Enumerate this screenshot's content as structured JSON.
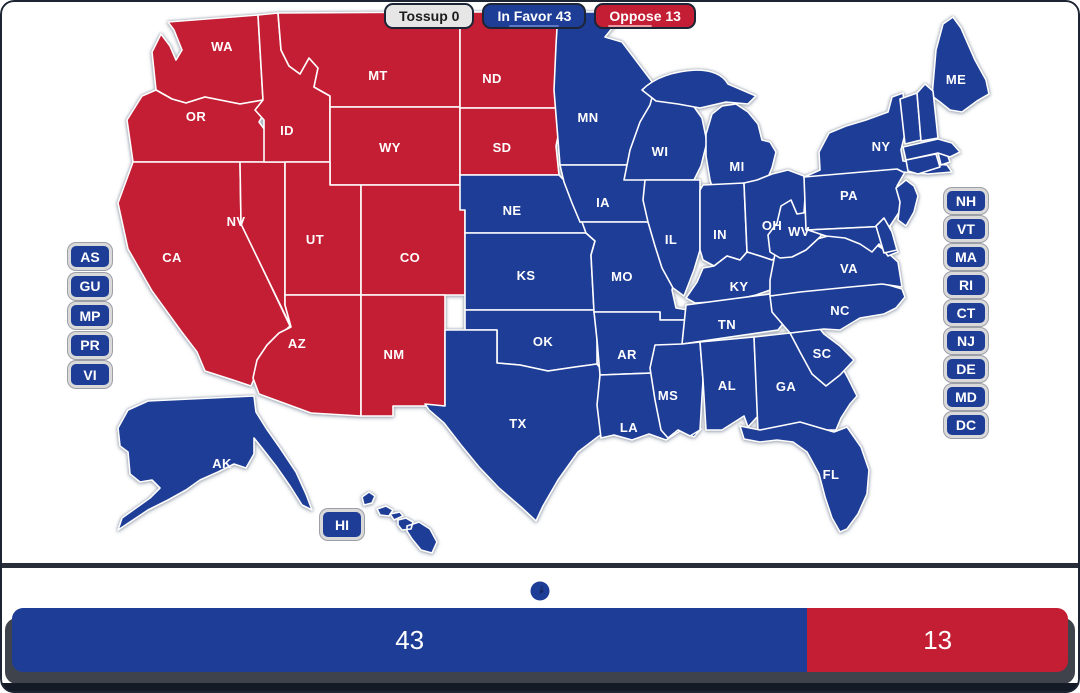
{
  "colors": {
    "in_favor": "#1e3d96",
    "oppose": "#c31e33",
    "tossup": "#e6e6e6",
    "state_border": "#ffffff",
    "label_text": "#ffffff",
    "divider": "#272e3a",
    "bar_shadow": "#3f444c"
  },
  "toolbar": {
    "tossup_text": "Tossup 0",
    "in_favor_text": "In Favor 43",
    "oppose_text": "Oppose 13"
  },
  "territory_boxes_left": [
    "AS",
    "GU",
    "MP",
    "PR",
    "VI"
  ],
  "state_boxes_right": [
    "NH",
    "VT",
    "MA",
    "RI",
    "CT",
    "NJ",
    "DE",
    "MD",
    "DC"
  ],
  "hawaii_box_label": "HI",
  "bar": {
    "in_favor_value": "43",
    "oppose_value": "13",
    "in_favor_seats": 43,
    "oppose_seats": 13,
    "total": 56
  },
  "marker_icon": "flag-threshold-marker",
  "map": {
    "states": [
      {
        "abbr": "WA",
        "status": "oppose",
        "label": true
      },
      {
        "abbr": "OR",
        "status": "oppose",
        "label": true
      },
      {
        "abbr": "CA",
        "status": "oppose",
        "label": true
      },
      {
        "abbr": "NV",
        "status": "oppose",
        "label": true
      },
      {
        "abbr": "ID",
        "status": "oppose",
        "label": true
      },
      {
        "abbr": "MT",
        "status": "oppose",
        "label": true
      },
      {
        "abbr": "WY",
        "status": "oppose",
        "label": true
      },
      {
        "abbr": "UT",
        "status": "oppose",
        "label": true
      },
      {
        "abbr": "CO",
        "status": "oppose",
        "label": true
      },
      {
        "abbr": "AZ",
        "status": "oppose",
        "label": true
      },
      {
        "abbr": "NM",
        "status": "oppose",
        "label": true
      },
      {
        "abbr": "ND",
        "status": "oppose",
        "label": true
      },
      {
        "abbr": "SD",
        "status": "oppose",
        "label": true
      },
      {
        "abbr": "NE",
        "status": "in_favor",
        "label": true
      },
      {
        "abbr": "KS",
        "status": "in_favor",
        "label": true
      },
      {
        "abbr": "OK",
        "status": "in_favor",
        "label": true
      },
      {
        "abbr": "TX",
        "status": "in_favor",
        "label": true
      },
      {
        "abbr": "MN",
        "status": "in_favor",
        "label": true
      },
      {
        "abbr": "IA",
        "status": "in_favor",
        "label": true
      },
      {
        "abbr": "MO",
        "status": "in_favor",
        "label": true
      },
      {
        "abbr": "AR",
        "status": "in_favor",
        "label": true
      },
      {
        "abbr": "LA",
        "status": "in_favor",
        "label": true
      },
      {
        "abbr": "WI",
        "status": "in_favor",
        "label": true
      },
      {
        "abbr": "MI",
        "status": "in_favor",
        "label": true
      },
      {
        "abbr": "IL",
        "status": "in_favor",
        "label": true
      },
      {
        "abbr": "IN",
        "status": "in_favor",
        "label": true
      },
      {
        "abbr": "OH",
        "status": "in_favor",
        "label": true
      },
      {
        "abbr": "KY",
        "status": "in_favor",
        "label": true
      },
      {
        "abbr": "TN",
        "status": "in_favor",
        "label": true
      },
      {
        "abbr": "MS",
        "status": "in_favor",
        "label": true
      },
      {
        "abbr": "AL",
        "status": "in_favor",
        "label": true
      },
      {
        "abbr": "GA",
        "status": "in_favor",
        "label": true
      },
      {
        "abbr": "FL",
        "status": "in_favor",
        "label": true
      },
      {
        "abbr": "SC",
        "status": "in_favor",
        "label": true
      },
      {
        "abbr": "NC",
        "status": "in_favor",
        "label": true
      },
      {
        "abbr": "VA",
        "status": "in_favor",
        "label": true
      },
      {
        "abbr": "WV",
        "status": "in_favor",
        "label": true
      },
      {
        "abbr": "PA",
        "status": "in_favor",
        "label": true
      },
      {
        "abbr": "NY",
        "status": "in_favor",
        "label": true
      },
      {
        "abbr": "ME",
        "status": "in_favor",
        "label": true
      },
      {
        "abbr": "MD",
        "status": "in_favor",
        "label": false
      },
      {
        "abbr": "DE",
        "status": "in_favor",
        "label": false
      },
      {
        "abbr": "NJ",
        "status": "in_favor",
        "label": false
      },
      {
        "abbr": "CT",
        "status": "in_favor",
        "label": false
      },
      {
        "abbr": "RI",
        "status": "in_favor",
        "label": false
      },
      {
        "abbr": "MA",
        "status": "in_favor",
        "label": false
      },
      {
        "abbr": "VT",
        "status": "in_favor",
        "label": false
      },
      {
        "abbr": "NH",
        "status": "in_favor",
        "label": false
      },
      {
        "abbr": "AK",
        "status": "in_favor",
        "label": true
      },
      {
        "abbr": "HI",
        "status": "in_favor",
        "label": false
      }
    ]
  }
}
